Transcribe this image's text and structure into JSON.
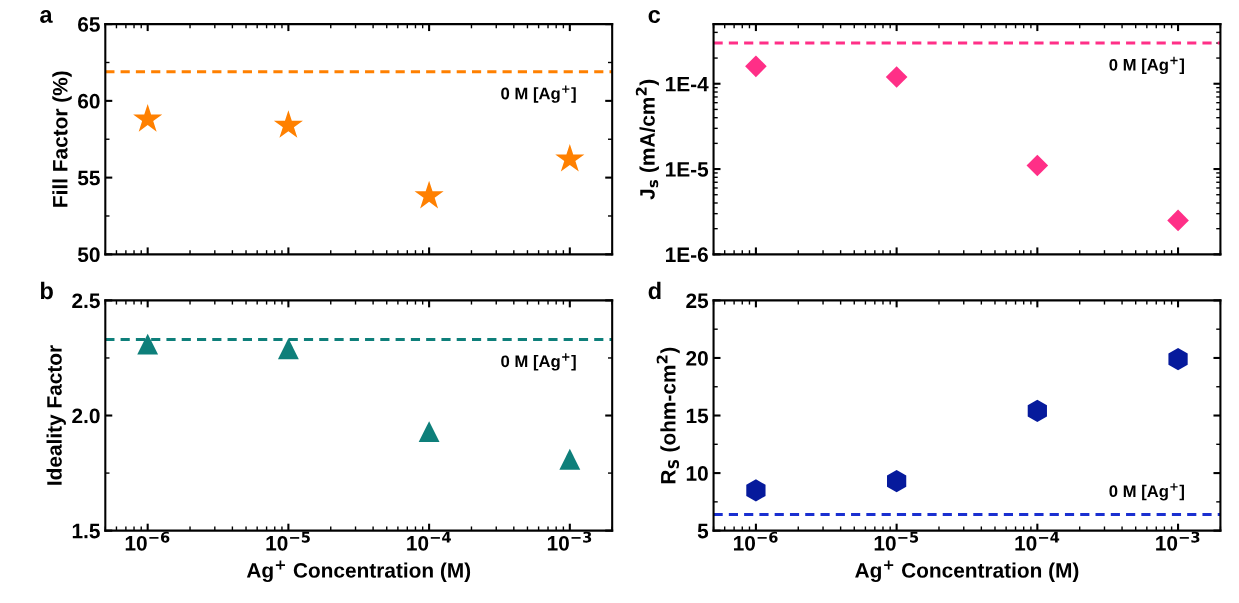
{
  "chart_data": [
    {
      "type": "scatter",
      "title": "a",
      "ylabel": "Fill Factor (%)",
      "x": [
        1e-06,
        1e-05,
        0.0001,
        0.001
      ],
      "log": "x",
      "xlim": [
        5e-07,
        0.002
      ],
      "xticks": [
        {
          "value": 1e-06,
          "label": null
        },
        {
          "value": 1e-05,
          "label": null
        },
        {
          "value": 0.0001,
          "label": null
        },
        {
          "value": 0.001,
          "label": null
        }
      ],
      "ylim": [
        50,
        65
      ],
      "yticks": [
        50,
        55,
        60,
        65
      ],
      "tick_labels": "y",
      "marker": "star",
      "grid": false,
      "series": [
        {
          "color": "#ff8000",
          "values": [
            58.8,
            58.4,
            53.8,
            56.2
          ]
        }
      ],
      "ref_lines": [
        {
          "axis": "y",
          "value": 61.9,
          "label": "0 M [Ag$^{+}$]",
          "color": "#ff8000",
          "line_style": "dashed"
        }
      ]
    },
    {
      "type": "scatter",
      "title": "c",
      "ylabel": "J$_{s}$ (mA/cm$^{2}$)",
      "x": [
        1e-06,
        1e-05,
        0.0001,
        0.001
      ],
      "log": "xy",
      "xlim": [
        5e-07,
        0.002
      ],
      "xticks": [
        {
          "value": 1e-06,
          "label": null
        },
        {
          "value": 1e-05,
          "label": null
        },
        {
          "value": 0.0001,
          "label": null
        },
        {
          "value": 0.001,
          "label": null
        }
      ],
      "ylim": [
        1e-06,
        0.0005
      ],
      "yticks": [
        {
          "value": 1e-06,
          "label": "1E-6"
        },
        {
          "value": 1e-05,
          "label": "1E-5"
        },
        {
          "value": 0.0001,
          "label": "1E-4"
        }
      ],
      "tick_labels": "y",
      "marker": "diamond",
      "grid": false,
      "series": [
        {
          "color": "#ff2f87",
          "values": [
            0.00016,
            0.00012,
            1.1e-05,
            2.5e-06
          ]
        }
      ],
      "ref_lines": [
        {
          "axis": "y",
          "value": 0.0003,
          "label": "0 M [Ag$^{+}$]",
          "color": "#ff2f87",
          "line_style": "dashed"
        }
      ]
    },
    {
      "type": "scatter",
      "title": "b",
      "ylabel": "Ideality Factor",
      "xlabel": "Ag$^{+}$ Concentration (M)",
      "x": [
        1e-06,
        1e-05,
        0.0001,
        0.001
      ],
      "log": "x",
      "xlim": [
        5e-07,
        0.002
      ],
      "xticks": [
        {
          "value": 1e-06,
          "label": "10$^{−6}$"
        },
        {
          "value": 1e-05,
          "label": "10$^{−5}$"
        },
        {
          "value": 0.0001,
          "label": "10$^{−4}$"
        },
        {
          "value": 0.001,
          "label": "10$^{−3}$"
        }
      ],
      "ylim": [
        1.5,
        2.5
      ],
      "yticks": [
        {
          "value": 1.5,
          "label": "1.5"
        },
        {
          "value": 2.0,
          "label": "2.0"
        },
        {
          "value": 2.5,
          "label": "2.5"
        }
      ],
      "marker": "triangle",
      "grid": false,
      "series": [
        {
          "color": "#0e7f7a",
          "values": [
            2.31,
            2.29,
            1.93,
            1.81
          ]
        }
      ],
      "ref_lines": [
        {
          "axis": "y",
          "value": 2.33,
          "label": "0 M [Ag$^{+}$]",
          "color": "#0e7f7a",
          "line_style": "dashed"
        }
      ]
    },
    {
      "type": "scatter",
      "title": "d",
      "ylabel": "R$_{S}$ (ohm-cm$^{2}$)",
      "xlabel": "Ag$^{+}$ Concentration (M)",
      "x": [
        1e-06,
        1e-05,
        0.0001,
        0.001
      ],
      "log": "x",
      "xlim": [
        5e-07,
        0.002
      ],
      "xticks": [
        {
          "value": 1e-06,
          "label": "10$^{−6}$"
        },
        {
          "value": 1e-05,
          "label": "10$^{−5}$"
        },
        {
          "value": 0.0001,
          "label": "10$^{−4}$"
        },
        {
          "value": 0.001,
          "label": "10$^{−3}$"
        }
      ],
      "ylim": [
        5,
        25
      ],
      "yticks": [
        5,
        10,
        15,
        20,
        25
      ],
      "grid": false,
      "series": [
        {
          "color": "#061a9c",
          "values": [
            8.5,
            9.3,
            15.4,
            19.9
          ]
        }
      ],
      "ref_lines": [
        {
          "axis": "y",
          "value": 6.4,
          "label": "0 M [Ag$^{+}$]",
          "color": "#1a2fd0",
          "line_style": "dashed"
        }
      ]
    }
  ]
}
